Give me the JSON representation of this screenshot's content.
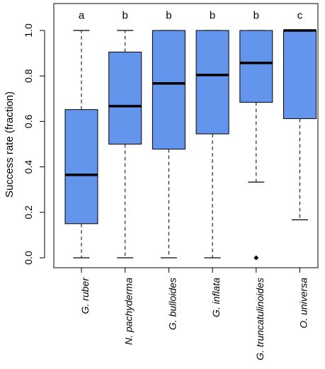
{
  "chart_data": {
    "type": "boxplot",
    "ylabel": "Success rate (fraction)",
    "ylim": [
      0,
      1
    ],
    "yticks": [
      "0.0",
      "0.2",
      "0.4",
      "0.6",
      "0.8",
      "1.0"
    ],
    "grid": false,
    "legend": "none",
    "box_color": "#6495ED",
    "categories": [
      "G. ruber",
      "N. pachyderma",
      "G. bulloides",
      "G. inflata",
      "G. truncatulinoides",
      "O. universa"
    ],
    "significance_letters": [
      "a",
      "b",
      "b",
      "b",
      "b",
      "c"
    ],
    "boxes": [
      {
        "min": 0.0,
        "q1": 0.15,
        "median": 0.365,
        "q3": 0.652,
        "max": 1.0,
        "outliers": []
      },
      {
        "min": 0.0,
        "q1": 0.5,
        "median": 0.667,
        "q3": 0.905,
        "max": 1.0,
        "outliers": []
      },
      {
        "min": 0.0,
        "q1": 0.478,
        "median": 0.767,
        "q3": 1.0,
        "max": 1.0,
        "outliers": []
      },
      {
        "min": 0.0,
        "q1": 0.545,
        "median": 0.804,
        "q3": 1.0,
        "max": 1.0,
        "outliers": []
      },
      {
        "min": 0.333,
        "q1": 0.684,
        "median": 0.857,
        "q3": 1.0,
        "max": 1.0,
        "outliers": [
          0.0
        ]
      },
      {
        "min": 0.167,
        "q1": 0.612,
        "median": 1.0,
        "q3": 1.0,
        "max": 1.0,
        "outliers": []
      }
    ]
  }
}
